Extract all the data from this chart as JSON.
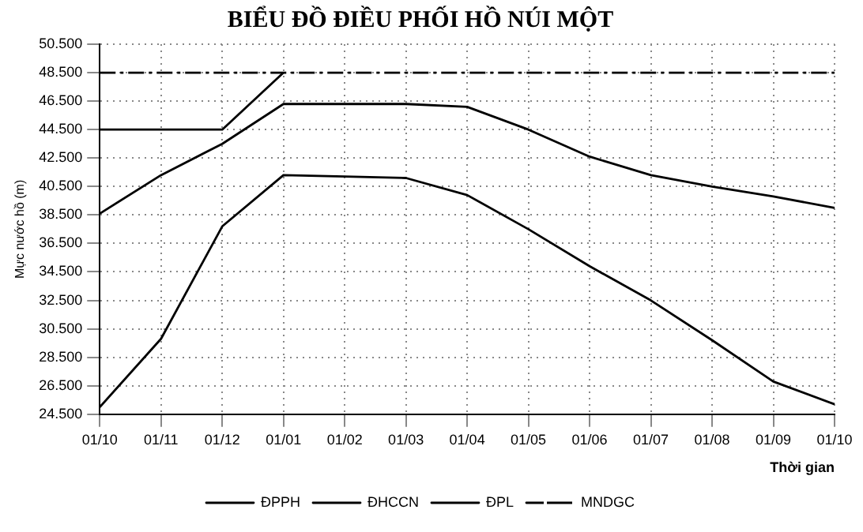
{
  "chart_data": {
    "type": "line",
    "title": "BIỂU ĐỒ ĐIỀU PHỐI HỒ NÚI MỘT",
    "xlabel": "Thời gian",
    "ylabel": "Mực nước hồ (m)",
    "categories": [
      "01/10",
      "01/11",
      "01/12",
      "01/01",
      "01/02",
      "01/03",
      "01/04",
      "01/05",
      "01/06",
      "01/07",
      "01/08",
      "01/09",
      "01/10"
    ],
    "ylim": [
      24.5,
      50.5
    ],
    "yticks": [
      {
        "value": 24.5,
        "label": "24.500"
      },
      {
        "value": 26.5,
        "label": "26.500"
      },
      {
        "value": 28.5,
        "label": "28.500"
      },
      {
        "value": 30.5,
        "label": "30.500"
      },
      {
        "value": 32.5,
        "label": "32.500"
      },
      {
        "value": 34.5,
        "label": "34.500"
      },
      {
        "value": 36.5,
        "label": "36.500"
      },
      {
        "value": 38.5,
        "label": "38.500"
      },
      {
        "value": 40.5,
        "label": "40.500"
      },
      {
        "value": 42.5,
        "label": "42.500"
      },
      {
        "value": 44.5,
        "label": "44.500"
      },
      {
        "value": 46.5,
        "label": "46.500"
      },
      {
        "value": 48.5,
        "label": "48.500"
      },
      {
        "value": 50.5,
        "label": "50.500"
      }
    ],
    "series": [
      {
        "name": "ĐPPH",
        "color": "#000000",
        "values": [
          38.6,
          41.3,
          43.5,
          46.3,
          46.3,
          46.3,
          46.1,
          44.5,
          42.6,
          41.3,
          40.5,
          39.8,
          39.0
        ]
      },
      {
        "name": "ĐHCCN",
        "color": "#000000",
        "values": [
          25.0,
          29.8,
          37.7,
          41.3,
          41.2,
          41.1,
          39.9,
          37.5,
          34.9,
          32.5,
          29.7,
          26.8,
          25.2
        ]
      },
      {
        "name": "ĐPL",
        "color": "#000000",
        "values": [
          44.5,
          44.5,
          44.5,
          48.5,
          null,
          null,
          null,
          null,
          null,
          null,
          null,
          null,
          null
        ]
      },
      {
        "name": "MNDGC",
        "color": "#000000",
        "line_style": "dashed",
        "values": [
          48.5,
          48.5,
          48.5,
          48.5,
          48.5,
          48.5,
          48.5,
          48.5,
          48.5,
          48.5,
          48.5,
          48.5,
          48.5
        ]
      }
    ],
    "grid": true,
    "legend": "bottom",
    "marker": "none",
    "line_style": "solid"
  }
}
